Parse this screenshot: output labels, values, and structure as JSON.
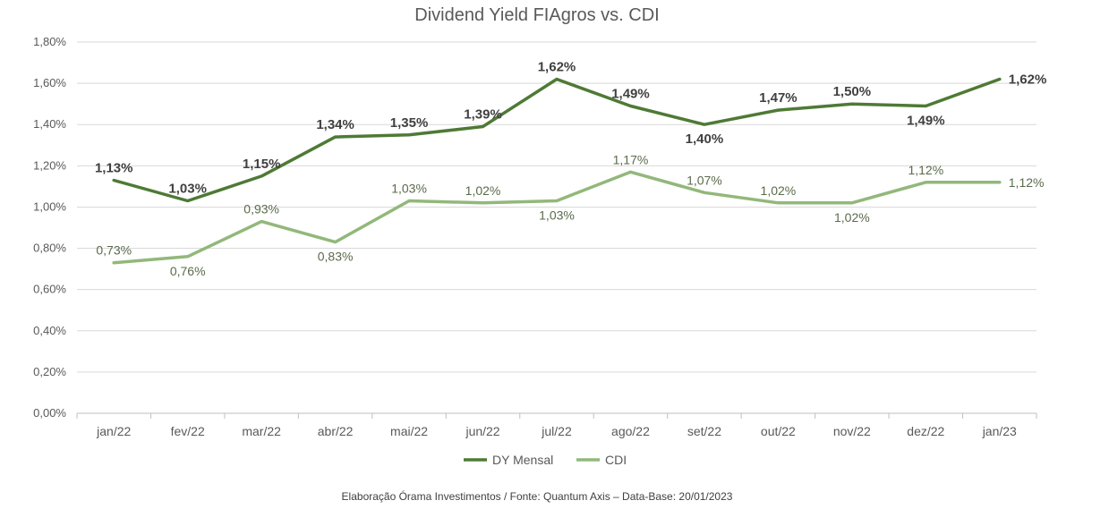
{
  "chart_data": {
    "type": "line",
    "title": "Dividend Yield FIAgros vs. CDI",
    "categories": [
      "jan/22",
      "fev/22",
      "mar/22",
      "abr/22",
      "mai/22",
      "jun/22",
      "jul/22",
      "ago/22",
      "set/22",
      "out/22",
      "nov/22",
      "dez/22",
      "jan/23"
    ],
    "series": [
      {
        "name": "DY Mensal",
        "color": "#4e7a35",
        "values": [
          1.13,
          1.03,
          1.15,
          1.34,
          1.35,
          1.39,
          1.62,
          1.49,
          1.4,
          1.47,
          1.5,
          1.49,
          1.62
        ],
        "labels": [
          "1,13%",
          "1,03%",
          "1,15%",
          "1,34%",
          "1,35%",
          "1,39%",
          "1,62%",
          "1,49%",
          "1,40%",
          "1,47%",
          "1,50%",
          "1,49%",
          "1,62%"
        ],
        "label_pos": [
          "above",
          "above",
          "above",
          "above",
          "above",
          "above",
          "above",
          "above",
          "below",
          "above",
          "above",
          "below",
          "right"
        ]
      },
      {
        "name": "CDI",
        "color": "#92b87a",
        "values": [
          0.73,
          0.76,
          0.93,
          0.83,
          1.03,
          1.02,
          1.03,
          1.17,
          1.07,
          1.02,
          1.02,
          1.12,
          1.12
        ],
        "labels": [
          "0,73%",
          "0,76%",
          "0,93%",
          "0,83%",
          "1,03%",
          "1,02%",
          "1,03%",
          "1,17%",
          "1,07%",
          "1,02%",
          "1,02%",
          "1,12%",
          "1,12%"
        ],
        "label_pos": [
          "above",
          "below",
          "above",
          "below",
          "above",
          "above",
          "below",
          "above",
          "above",
          "above",
          "below",
          "above",
          "right"
        ]
      }
    ],
    "yticks": [
      "0,00%",
      "0,20%",
      "0,40%",
      "0,60%",
      "0,80%",
      "1,00%",
      "1,20%",
      "1,40%",
      "1,60%",
      "1,80%"
    ],
    "ylim": [
      0,
      1.8
    ],
    "grid": true,
    "legend_position": "bottom"
  },
  "source_note": "Elaboração Órama Investimentos / Fonte: Quantum Axis – Data-Base: 20/01/2023"
}
